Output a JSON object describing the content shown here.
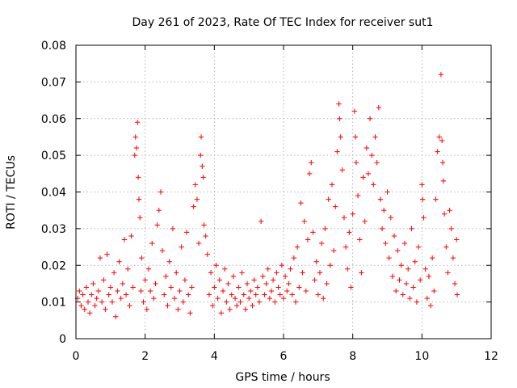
{
  "chart_data": {
    "type": "scatter",
    "title": "Day 261 of 2023, Rate Of TEC Index for receiver sut1",
    "xlabel": "GPS time / hours",
    "ylabel": "ROTI / TECUs",
    "xlim": [
      0,
      12
    ],
    "ylim": [
      0,
      0.08
    ],
    "xticks": [
      0,
      2,
      4,
      6,
      8,
      10,
      12
    ],
    "yticks": [
      0,
      0.01,
      0.02,
      0.03,
      0.04,
      0.05,
      0.06,
      0.07,
      0.08
    ],
    "xtick_labels": [
      "0",
      "2",
      "4",
      "6",
      "8",
      "10",
      "12"
    ],
    "ytick_labels": [
      "0",
      "0.01",
      "0.02",
      "0.03",
      "0.04",
      "0.05",
      "0.06",
      "0.07",
      "0.08"
    ],
    "grid": true,
    "marker": "+",
    "color": "#ff0000",
    "series": [
      {
        "name": "ROTI",
        "points": [
          [
            0.05,
            0.011
          ],
          [
            0.1,
            0.013
          ],
          [
            0.15,
            0.009
          ],
          [
            0.2,
            0.012
          ],
          [
            0.25,
            0.008
          ],
          [
            0.3,
            0.014
          ],
          [
            0.35,
            0.01
          ],
          [
            0.4,
            0.007
          ],
          [
            0.45,
            0.012
          ],
          [
            0.5,
            0.015
          ],
          [
            0.55,
            0.009
          ],
          [
            0.6,
            0.011
          ],
          [
            0.65,
            0.013
          ],
          [
            0.7,
            0.022
          ],
          [
            0.75,
            0.01
          ],
          [
            0.8,
            0.016
          ],
          [
            0.85,
            0.008
          ],
          [
            0.9,
            0.023
          ],
          [
            0.95,
            0.012
          ],
          [
            1.0,
            0.014
          ],
          [
            1.05,
            0.01
          ],
          [
            1.1,
            0.018
          ],
          [
            1.15,
            0.006
          ],
          [
            1.2,
            0.013
          ],
          [
            1.25,
            0.021
          ],
          [
            1.3,
            0.011
          ],
          [
            1.35,
            0.015
          ],
          [
            1.4,
            0.027
          ],
          [
            1.45,
            0.012
          ],
          [
            1.5,
            0.019
          ],
          [
            1.55,
            0.009
          ],
          [
            1.6,
            0.028
          ],
          [
            1.65,
            0.014
          ],
          [
            1.7,
            0.05
          ],
          [
            1.72,
            0.055
          ],
          [
            1.75,
            0.052
          ],
          [
            1.78,
            0.059
          ],
          [
            1.8,
            0.044
          ],
          [
            1.82,
            0.038
          ],
          [
            1.85,
            0.033
          ],
          [
            1.88,
            0.013
          ],
          [
            1.9,
            0.022
          ],
          [
            1.95,
            0.01
          ],
          [
            2.0,
            0.016
          ],
          [
            2.05,
            0.008
          ],
          [
            2.1,
            0.019
          ],
          [
            2.15,
            0.013
          ],
          [
            2.2,
            0.026
          ],
          [
            2.25,
            0.011
          ],
          [
            2.3,
            0.015
          ],
          [
            2.35,
            0.031
          ],
          [
            2.4,
            0.035
          ],
          [
            2.45,
            0.04
          ],
          [
            2.5,
            0.024
          ],
          [
            2.55,
            0.012
          ],
          [
            2.6,
            0.017
          ],
          [
            2.65,
            0.009
          ],
          [
            2.7,
            0.021
          ],
          [
            2.75,
            0.014
          ],
          [
            2.8,
            0.03
          ],
          [
            2.85,
            0.011
          ],
          [
            2.9,
            0.018
          ],
          [
            2.95,
            0.008
          ],
          [
            3.0,
            0.013
          ],
          [
            3.05,
            0.025
          ],
          [
            3.1,
            0.01
          ],
          [
            3.15,
            0.016
          ],
          [
            3.2,
            0.029
          ],
          [
            3.25,
            0.012
          ],
          [
            3.3,
            0.007
          ],
          [
            3.35,
            0.014
          ],
          [
            3.4,
            0.036
          ],
          [
            3.45,
            0.042
          ],
          [
            3.5,
            0.038
          ],
          [
            3.55,
            0.026
          ],
          [
            3.6,
            0.05
          ],
          [
            3.62,
            0.055
          ],
          [
            3.65,
            0.047
          ],
          [
            3.68,
            0.044
          ],
          [
            3.7,
            0.031
          ],
          [
            3.75,
            0.028
          ],
          [
            3.8,
            0.023
          ],
          [
            3.85,
            0.012
          ],
          [
            3.9,
            0.018
          ],
          [
            3.95,
            0.009
          ],
          [
            4.0,
            0.014
          ],
          [
            4.05,
            0.02
          ],
          [
            4.1,
            0.011
          ],
          [
            4.15,
            0.016
          ],
          [
            4.2,
            0.007
          ],
          [
            4.25,
            0.013
          ],
          [
            4.3,
            0.019
          ],
          [
            4.35,
            0.01
          ],
          [
            4.4,
            0.015
          ],
          [
            4.45,
            0.008
          ],
          [
            4.5,
            0.012
          ],
          [
            4.55,
            0.017
          ],
          [
            4.6,
            0.011
          ],
          [
            4.65,
            0.009
          ],
          [
            4.7,
            0.014
          ],
          [
            4.75,
            0.01
          ],
          [
            4.8,
            0.018
          ],
          [
            4.85,
            0.012
          ],
          [
            4.9,
            0.008
          ],
          [
            4.95,
            0.015
          ],
          [
            5.0,
            0.011
          ],
          [
            5.05,
            0.013
          ],
          [
            5.1,
            0.009
          ],
          [
            5.15,
            0.016
          ],
          [
            5.2,
            0.012
          ],
          [
            5.25,
            0.014
          ],
          [
            5.3,
            0.01
          ],
          [
            5.35,
            0.032
          ],
          [
            5.4,
            0.017
          ],
          [
            5.45,
            0.012
          ],
          [
            5.5,
            0.015
          ],
          [
            5.55,
            0.019
          ],
          [
            5.6,
            0.011
          ],
          [
            5.65,
            0.013
          ],
          [
            5.7,
            0.016
          ],
          [
            5.75,
            0.01
          ],
          [
            5.8,
            0.018
          ],
          [
            5.85,
            0.014
          ],
          [
            5.9,
            0.012
          ],
          [
            5.95,
            0.02
          ],
          [
            6.0,
            0.011
          ],
          [
            6.05,
            0.017
          ],
          [
            6.1,
            0.013
          ],
          [
            6.15,
            0.015
          ],
          [
            6.2,
            0.019
          ],
          [
            6.25,
            0.012
          ],
          [
            6.3,
            0.022
          ],
          [
            6.35,
            0.01
          ],
          [
            6.4,
            0.025
          ],
          [
            6.45,
            0.014
          ],
          [
            6.5,
            0.037
          ],
          [
            6.55,
            0.018
          ],
          [
            6.6,
            0.032
          ],
          [
            6.65,
            0.013
          ],
          [
            6.7,
            0.027
          ],
          [
            6.75,
            0.045
          ],
          [
            6.8,
            0.048
          ],
          [
            6.85,
            0.029
          ],
          [
            6.9,
            0.016
          ],
          [
            6.95,
            0.021
          ],
          [
            7.0,
            0.012
          ],
          [
            7.05,
            0.018
          ],
          [
            7.1,
            0.026
          ],
          [
            7.15,
            0.011
          ],
          [
            7.2,
            0.03
          ],
          [
            7.25,
            0.015
          ],
          [
            7.3,
            0.038
          ],
          [
            7.35,
            0.02
          ],
          [
            7.4,
            0.042
          ],
          [
            7.45,
            0.024
          ],
          [
            7.5,
            0.036
          ],
          [
            7.55,
            0.051
          ],
          [
            7.6,
            0.064
          ],
          [
            7.62,
            0.06
          ],
          [
            7.65,
            0.055
          ],
          [
            7.7,
            0.046
          ],
          [
            7.75,
            0.033
          ],
          [
            7.8,
            0.025
          ],
          [
            7.85,
            0.019
          ],
          [
            7.9,
            0.029
          ],
          [
            7.95,
            0.014
          ],
          [
            8.0,
            0.034
          ],
          [
            8.05,
            0.062
          ],
          [
            8.08,
            0.055
          ],
          [
            8.1,
            0.048
          ],
          [
            8.15,
            0.039
          ],
          [
            8.2,
            0.027
          ],
          [
            8.25,
            0.018
          ],
          [
            8.3,
            0.044
          ],
          [
            8.35,
            0.032
          ],
          [
            8.4,
            0.052
          ],
          [
            8.45,
            0.045
          ],
          [
            8.5,
            0.06
          ],
          [
            8.55,
            0.05
          ],
          [
            8.6,
            0.042
          ],
          [
            8.65,
            0.055
          ],
          [
            8.7,
            0.048
          ],
          [
            8.75,
            0.063
          ],
          [
            8.8,
            0.038
          ],
          [
            8.85,
            0.03
          ],
          [
            8.9,
            0.035
          ],
          [
            8.95,
            0.026
          ],
          [
            9.0,
            0.04
          ],
          [
            9.05,
            0.022
          ],
          [
            9.1,
            0.033
          ],
          [
            9.15,
            0.017
          ],
          [
            9.2,
            0.028
          ],
          [
            9.25,
            0.013
          ],
          [
            9.3,
            0.024
          ],
          [
            9.35,
            0.016
          ],
          [
            9.4,
            0.02
          ],
          [
            9.45,
            0.012
          ],
          [
            9.5,
            0.026
          ],
          [
            9.55,
            0.015
          ],
          [
            9.6,
            0.019
          ],
          [
            9.65,
            0.011
          ],
          [
            9.7,
            0.03
          ],
          [
            9.75,
            0.014
          ],
          [
            9.8,
            0.021
          ],
          [
            9.85,
            0.01
          ],
          [
            9.9,
            0.025
          ],
          [
            9.95,
            0.016
          ],
          [
            10.0,
            0.042
          ],
          [
            10.02,
            0.038
          ],
          [
            10.05,
            0.033
          ],
          [
            10.1,
            0.019
          ],
          [
            10.15,
            0.011
          ],
          [
            10.2,
            0.017
          ],
          [
            10.25,
            0.009
          ],
          [
            10.3,
            0.022
          ],
          [
            10.35,
            0.013
          ],
          [
            10.4,
            0.038
          ],
          [
            10.45,
            0.051
          ],
          [
            10.5,
            0.055
          ],
          [
            10.55,
            0.072
          ],
          [
            10.58,
            0.054
          ],
          [
            10.6,
            0.048
          ],
          [
            10.62,
            0.043
          ],
          [
            10.65,
            0.034
          ],
          [
            10.7,
            0.025
          ],
          [
            10.75,
            0.018
          ],
          [
            10.8,
            0.035
          ],
          [
            10.85,
            0.03
          ],
          [
            10.9,
            0.022
          ],
          [
            10.95,
            0.015
          ],
          [
            11.0,
            0.027
          ],
          [
            11.02,
            0.012
          ]
        ]
      }
    ]
  }
}
